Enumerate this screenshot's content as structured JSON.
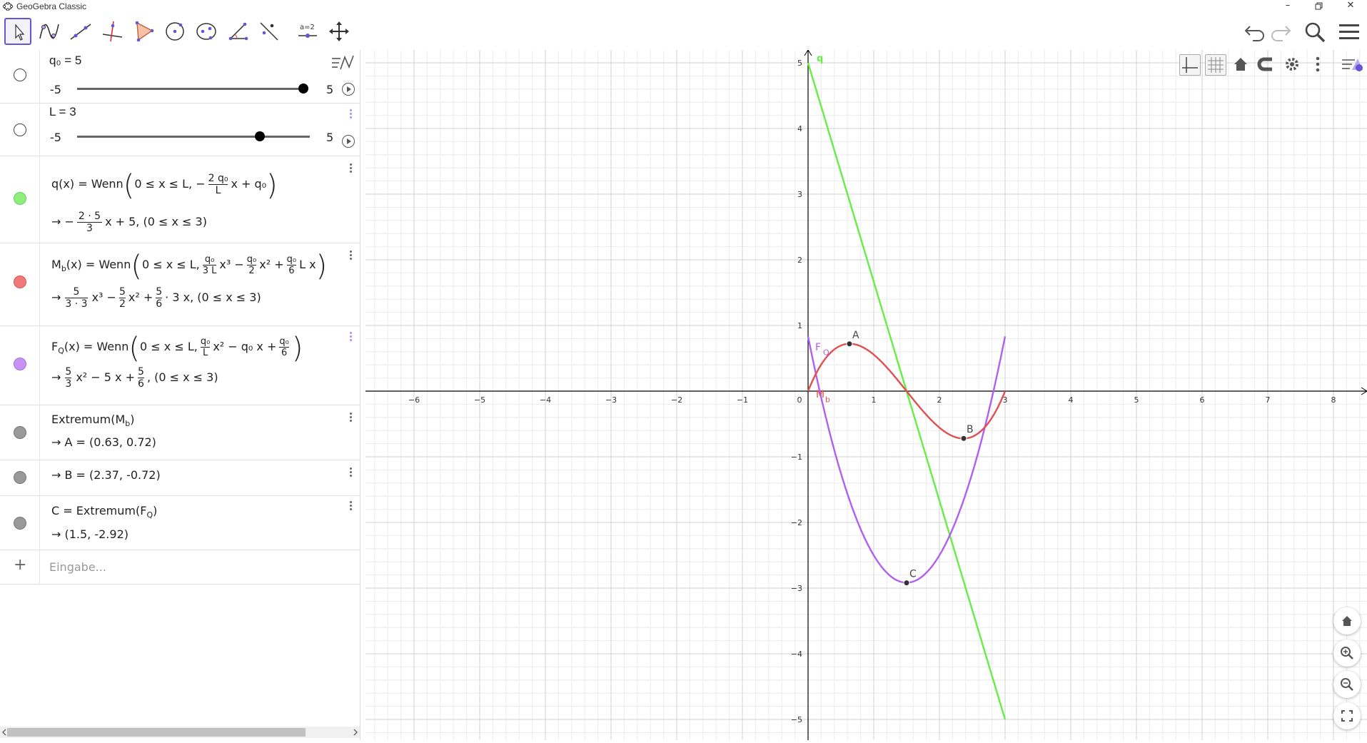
{
  "window": {
    "title": "GeoGebra Classic"
  },
  "toolbar": {
    "tools": [
      "move-tool",
      "function-tool",
      "line-tool",
      "perpendicular-tool",
      "polygon-tool",
      "circle-tool",
      "ellipse-tool",
      "angle-tool",
      "reflect-tool",
      "slider-tool",
      "move-graphics-tool"
    ],
    "slider_tool_label": "a=2"
  },
  "algebra": {
    "rows": [
      {
        "id": "q0",
        "label": "q₀ = 5",
        "min": "-5",
        "max": "5",
        "value": 5
      },
      {
        "id": "L",
        "label": "L = 3",
        "min": "-5",
        "max": "5",
        "value": 3
      }
    ],
    "q_def_prefix": "q(x)  =  Wenn",
    "q_def_body": "0 ≤ x ≤ L, −",
    "q_def_frac_num": "2 q₀",
    "q_def_frac_den": "L",
    "q_def_tail": "x + q₀",
    "q_res_prefix": "→  −",
    "q_res_frac_num": "2 · 5",
    "q_res_frac_den": "3",
    "q_res_tail": "x + 5,    (0 ≤ x ≤ 3)",
    "mb_def_prefix": "M",
    "mb_def_sub": "b",
    "mb_def_mid": "(x)  =  Wenn",
    "mb_def_body": "0 ≤ x ≤ L,",
    "mb_def_f1_num": "q₀",
    "mb_def_f1_den": "3 L",
    "mb_def_t1": "x³ −",
    "mb_def_f2_num": "q₀",
    "mb_def_f2_den": "2",
    "mb_def_t2": "x² +",
    "mb_def_f3_num": "q₀",
    "mb_def_f3_den": "6",
    "mb_def_t3": "L x",
    "mb_res_prefix": "→",
    "mb_res_f1_num": "5",
    "mb_res_f1_den": "3 · 3",
    "mb_res_t1": "x³ −",
    "mb_res_f2_num": "5",
    "mb_res_f2_den": "2",
    "mb_res_t2": "x² +",
    "mb_res_f3_num": "5",
    "mb_res_f3_den": "6",
    "mb_res_t3": "· 3 x,    (0 ≤ x ≤ 3)",
    "fq_def_prefix": "F",
    "fq_def_sub": "Q",
    "fq_def_mid": "(x)  =  Wenn",
    "fq_def_body": "0 ≤ x ≤ L,",
    "fq_def_f1_num": "q₀",
    "fq_def_f1_den": "L",
    "fq_def_t1": "x² − q₀ x +",
    "fq_def_f2_num": "q₀",
    "fq_def_f2_den": "6",
    "fq_res_prefix": "→",
    "fq_res_f1_num": "5",
    "fq_res_f1_den": "3",
    "fq_res_t1": "x² − 5 x +",
    "fq_res_f2_num": "5",
    "fq_res_f2_den": "6",
    "fq_res_t2": ",    (0 ≤ x ≤ 3)",
    "ext_def": "Extremum(M",
    "ext_def_sub": "b",
    "ext_def_close": ")",
    "ext_A": "→  A = (0.63, 0.72)",
    "ext_B": "→  B = (2.37, -0.72)",
    "c_def": "C  =  Extremum(F",
    "c_def_sub": "Q",
    "c_def_close": ")",
    "c_res": "→  (1.5, -2.92)",
    "input_placeholder": "Eingabe...",
    "add_symbol": "+"
  },
  "colors": {
    "q": "#66ee44",
    "mb": "#e05050",
    "fq": "#b060f0",
    "points": "#333333",
    "grid_major": "#d0d0d0",
    "grid_minor": "#ececec",
    "axis": "#000000",
    "accent": "#6557d2"
  },
  "graph": {
    "x_ticks": [
      "-6",
      "-5",
      "-4",
      "-3",
      "-2",
      "-1",
      "0",
      "1",
      "2",
      "3",
      "4",
      "5",
      "6",
      "7",
      "8"
    ],
    "y_ticks": [
      "5",
      "4",
      "3",
      "2",
      "1",
      "-1",
      "-2",
      "-3",
      "-4",
      "-5"
    ],
    "labels": {
      "q": "q",
      "fq": "F",
      "fq_sub": "Q",
      "mb": "M",
      "mb_sub": "b",
      "A": "A",
      "B": "B",
      "C": "C"
    },
    "points": [
      {
        "name": "A",
        "x": 0.63,
        "y": 0.72
      },
      {
        "name": "B",
        "x": 2.37,
        "y": -0.72
      },
      {
        "name": "C",
        "x": 1.5,
        "y": -2.92
      }
    ],
    "q0": 5,
    "L": 3
  }
}
